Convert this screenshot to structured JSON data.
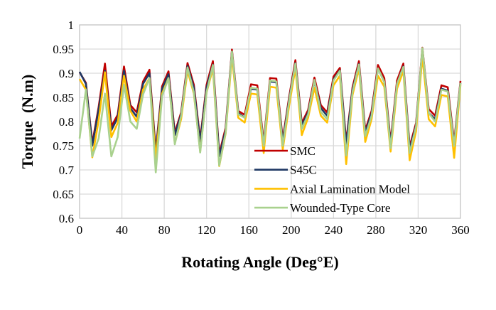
{
  "chart_data": {
    "type": "line",
    "xlabel": "Rotating Angle (Deg°E)",
    "ylabel": "Torque  (N.m)",
    "xlim": [
      0,
      360
    ],
    "ylim": [
      0.6,
      1
    ],
    "xticks": [
      0,
      40,
      80,
      120,
      160,
      200,
      240,
      280,
      320,
      360
    ],
    "yticks": [
      "0.6",
      "0.65",
      "0.7",
      "0.75",
      "0.8",
      "0.85",
      "0.9",
      "0.95",
      "1"
    ],
    "grid": true,
    "legend_position": "inside-bottom-center",
    "x_step": 6,
    "series": [
      {
        "name": "SMC",
        "color": "#c00000",
        "values": [
          0.902,
          0.88,
          0.755,
          0.83,
          0.92,
          0.79,
          0.814,
          0.914,
          0.834,
          0.819,
          0.883,
          0.907,
          0.74,
          0.873,
          0.904,
          0.777,
          0.819,
          0.921,
          0.876,
          0.763,
          0.876,
          0.925,
          0.733,
          0.787,
          0.949,
          0.822,
          0.814,
          0.877,
          0.875,
          0.758,
          0.89,
          0.889,
          0.763,
          0.85,
          0.927,
          0.797,
          0.824,
          0.891,
          0.834,
          0.819,
          0.893,
          0.911,
          0.758,
          0.871,
          0.925,
          0.782,
          0.822,
          0.917,
          0.89,
          0.758,
          0.885,
          0.92,
          0.748,
          0.797,
          0.953,
          0.826,
          0.812,
          0.875,
          0.871,
          0.758,
          0.884
        ]
      },
      {
        "name": "S45C",
        "color": "#1f3864",
        "values": [
          0.903,
          0.878,
          0.75,
          0.825,
          0.905,
          0.782,
          0.808,
          0.905,
          0.828,
          0.81,
          0.878,
          0.9,
          0.735,
          0.868,
          0.898,
          0.772,
          0.815,
          0.915,
          0.87,
          0.758,
          0.87,
          0.918,
          0.728,
          0.782,
          0.945,
          0.818,
          0.808,
          0.868,
          0.866,
          0.753,
          0.883,
          0.881,
          0.758,
          0.845,
          0.921,
          0.792,
          0.819,
          0.884,
          0.828,
          0.812,
          0.887,
          0.906,
          0.753,
          0.866,
          0.919,
          0.777,
          0.817,
          0.91,
          0.882,
          0.753,
          0.878,
          0.914,
          0.743,
          0.792,
          0.95,
          0.818,
          0.805,
          0.868,
          0.864,
          0.753,
          0.88
        ]
      },
      {
        "name": "Axial Lamination Model",
        "color": "#ffc000",
        "values": [
          0.888,
          0.866,
          0.726,
          0.802,
          0.902,
          0.768,
          0.797,
          0.895,
          0.822,
          0.8,
          0.866,
          0.89,
          0.723,
          0.858,
          0.89,
          0.755,
          0.805,
          0.905,
          0.858,
          0.738,
          0.86,
          0.91,
          0.708,
          0.775,
          0.935,
          0.808,
          0.798,
          0.858,
          0.856,
          0.735,
          0.872,
          0.87,
          0.742,
          0.832,
          0.91,
          0.772,
          0.808,
          0.87,
          0.812,
          0.798,
          0.875,
          0.895,
          0.712,
          0.855,
          0.91,
          0.758,
          0.805,
          0.895,
          0.872,
          0.738,
          0.868,
          0.905,
          0.72,
          0.78,
          0.935,
          0.805,
          0.79,
          0.855,
          0.852,
          0.725,
          0.876
        ]
      },
      {
        "name": "Wounded-Type Core",
        "color": "#a9d18e",
        "values": [
          0.765,
          0.866,
          0.728,
          0.765,
          0.858,
          0.728,
          0.768,
          0.876,
          0.8,
          0.785,
          0.856,
          0.89,
          0.695,
          0.853,
          0.89,
          0.753,
          0.812,
          0.912,
          0.861,
          0.736,
          0.861,
          0.917,
          0.709,
          0.777,
          0.945,
          0.815,
          0.808,
          0.87,
          0.868,
          0.75,
          0.885,
          0.883,
          0.75,
          0.842,
          0.92,
          0.785,
          0.815,
          0.886,
          0.82,
          0.805,
          0.885,
          0.905,
          0.73,
          0.862,
          0.918,
          0.77,
          0.812,
          0.91,
          0.882,
          0.745,
          0.878,
          0.913,
          0.735,
          0.79,
          0.952,
          0.818,
          0.8,
          0.866,
          0.862,
          0.75,
          0.88
        ]
      }
    ]
  }
}
